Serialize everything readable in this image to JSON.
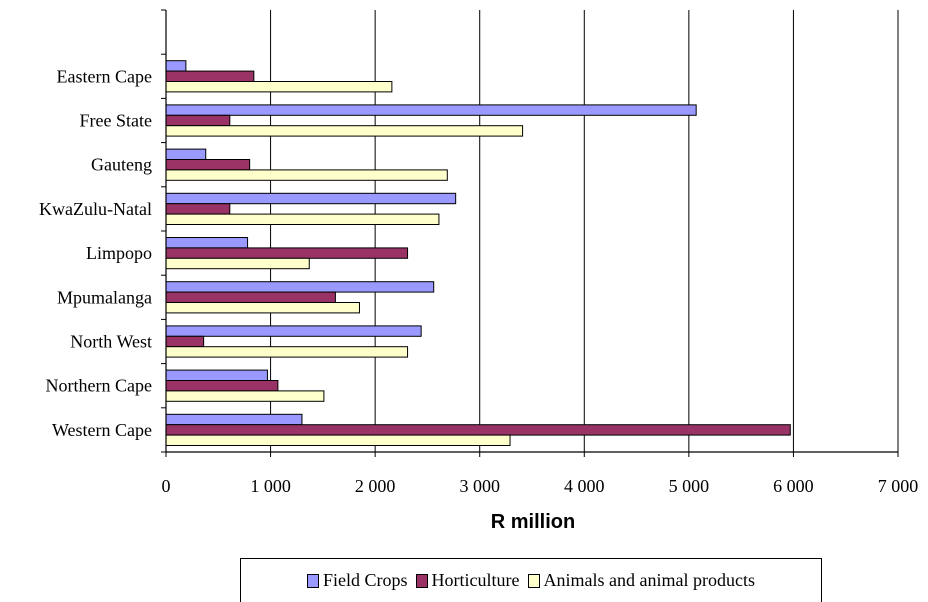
{
  "chart_data": {
    "type": "bar",
    "orientation": "horizontal",
    "title": "",
    "xlabel": "R million",
    "ylabel": "",
    "xlim": [
      0,
      7000
    ],
    "x_ticks": [
      0,
      1000,
      2000,
      3000,
      4000,
      5000,
      6000,
      7000
    ],
    "x_tick_labels": [
      "0",
      "1 000",
      "2 000",
      "3 000",
      "4 000",
      "5 000",
      "6 000",
      "7 000"
    ],
    "grid": "vertical major gridlines",
    "legend_position": "bottom",
    "categories": [
      "Eastern Cape",
      "Free State",
      "Gauteng",
      "KwaZulu-Natal",
      "Limpopo",
      "Mpumalanga",
      "North West",
      "Northern Cape",
      "Western Cape"
    ],
    "series": [
      {
        "name": "Field Crops",
        "color": "#9999FF",
        "values": [
          190,
          5070,
          380,
          2770,
          780,
          2560,
          2440,
          970,
          1300
        ]
      },
      {
        "name": "Horticulture",
        "color": "#993366",
        "values": [
          840,
          610,
          800,
          610,
          2310,
          1620,
          360,
          1070,
          5970
        ]
      },
      {
        "name": "Animals and animal products",
        "color": "#FFFFCC",
        "values": [
          2160,
          3410,
          2690,
          2610,
          1370,
          1850,
          2310,
          1510,
          3290
        ]
      }
    ]
  }
}
